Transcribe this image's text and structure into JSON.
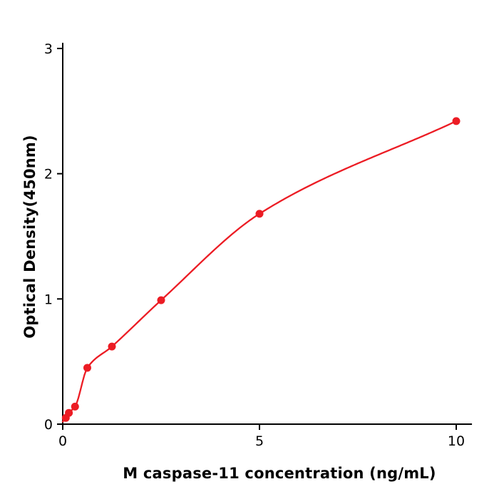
{
  "figure": {
    "background": "#ffffff"
  },
  "chart_data": {
    "type": "scatter",
    "title": "",
    "xlabel": "M  caspase-11 concentration (ng/mL)",
    "ylabel": "Optical Density(450nm)",
    "x": [
      0.078,
      0.156,
      0.313,
      0.625,
      1.25,
      2.5,
      5,
      10
    ],
    "values": [
      0.05,
      0.09,
      0.14,
      0.45,
      0.62,
      0.99,
      1.68,
      2.42
    ],
    "curve": "smooth monotone fit through data points starting near origin",
    "curve_anchor": [
      0,
      0.02
    ],
    "xlim": [
      0,
      10.4
    ],
    "ylim": [
      0,
      3
    ],
    "x_ticks": [
      "0",
      "5",
      "10"
    ],
    "x_tick_values": [
      0,
      5,
      10
    ],
    "y_ticks": [
      "0",
      "1",
      "2",
      "3"
    ],
    "y_tick_values": [
      0,
      1,
      2,
      3
    ],
    "grid": false,
    "legend": "none",
    "marker_color": "#ec1c24",
    "line_color": "#ec1c24",
    "axis_color": "#000000",
    "marker_radius": 5.5
  }
}
